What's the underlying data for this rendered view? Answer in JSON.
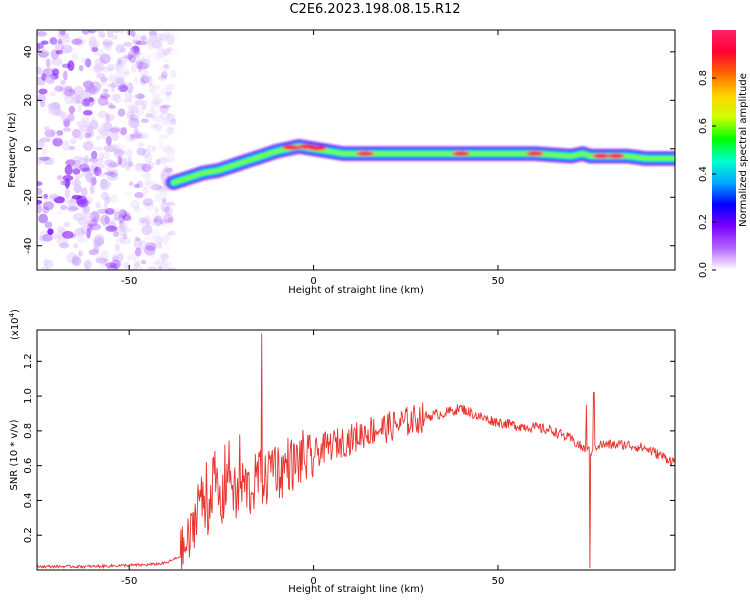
{
  "title": "C2E6.2023.198.08.15.R12",
  "chart_data": [
    {
      "type": "heatmap",
      "xlabel": "Height of straight line (km)",
      "ylabel": "Frequency (Hz)",
      "xlim": [
        -75,
        98
      ],
      "ylim": [
        -50,
        49
      ],
      "x_ticks": [
        -50,
        0,
        50
      ],
      "y_ticks": [
        -40,
        -20,
        0,
        20,
        40
      ],
      "colorbar": {
        "label": "Normalized spectral amplitude",
        "range": [
          0,
          1
        ],
        "ticks": [
          0.0,
          0.2,
          0.4,
          0.6,
          0.8
        ],
        "colors": [
          "#ffffff",
          "#b566ff",
          "#7a00ff",
          "#0000ff",
          "#00aaff",
          "#00ffcc",
          "#00ff00",
          "#ccff00",
          "#ffd400",
          "#ff6600",
          "#ff0033",
          "#ff2266"
        ]
      },
      "noise_region_x": [
        -75,
        -38
      ],
      "ridge": {
        "x": [
          -38,
          -34,
          -30,
          -26,
          -22,
          -18,
          -14,
          -10,
          -7,
          -4,
          0,
          4,
          8,
          12,
          20,
          30,
          40,
          50,
          60,
          70,
          73,
          75,
          80,
          85,
          90,
          98
        ],
        "y": [
          -14,
          -12,
          -10,
          -9,
          -7,
          -5,
          -3,
          -1,
          0,
          1,
          0,
          -1,
          -2,
          -2,
          -2,
          -2,
          -2,
          -2,
          -2,
          -3,
          -2,
          -3,
          -3,
          -3,
          -4,
          -4
        ]
      }
    },
    {
      "type": "line",
      "xlabel": "Height of straight line (km)",
      "ylabel": "SNR (10 * v/v)",
      "y_multiplier": "(x10",
      "y_multiplier_exp": "4",
      "y_multiplier_close": ")",
      "xlim": [
        -75,
        98
      ],
      "ylim": [
        0,
        1.38
      ],
      "x_ticks": [
        -50,
        0,
        50
      ],
      "y_ticks": [
        0.2,
        0.4,
        0.6,
        0.8,
        1.0,
        1.2
      ],
      "color": "#e8332e",
      "series": [
        {
          "x": [
            -75,
            -60,
            -45,
            -40,
            -36,
            -33,
            -31,
            -29,
            -27,
            -25,
            -23,
            -21,
            -19,
            -17,
            -15,
            -13,
            -11,
            -9,
            -7,
            -5,
            -3,
            -1,
            1,
            5,
            10,
            15,
            20,
            25,
            30,
            35,
            40,
            45,
            50,
            55,
            60,
            65,
            70,
            73,
            75,
            77,
            80,
            85,
            90,
            95,
            98
          ],
          "y": [
            0.02,
            0.02,
            0.03,
            0.04,
            0.08,
            0.2,
            0.45,
            0.3,
            0.55,
            0.35,
            0.6,
            0.4,
            0.5,
            0.45,
            0.55,
            0.5,
            0.65,
            0.55,
            0.62,
            0.6,
            0.65,
            0.62,
            0.68,
            0.72,
            0.75,
            0.8,
            0.82,
            0.85,
            0.88,
            0.9,
            0.93,
            0.88,
            0.85,
            0.83,
            0.82,
            0.8,
            0.75,
            0.7,
            0.68,
            0.72,
            0.72,
            0.72,
            0.7,
            0.65,
            0.62
          ]
        }
      ]
    }
  ]
}
